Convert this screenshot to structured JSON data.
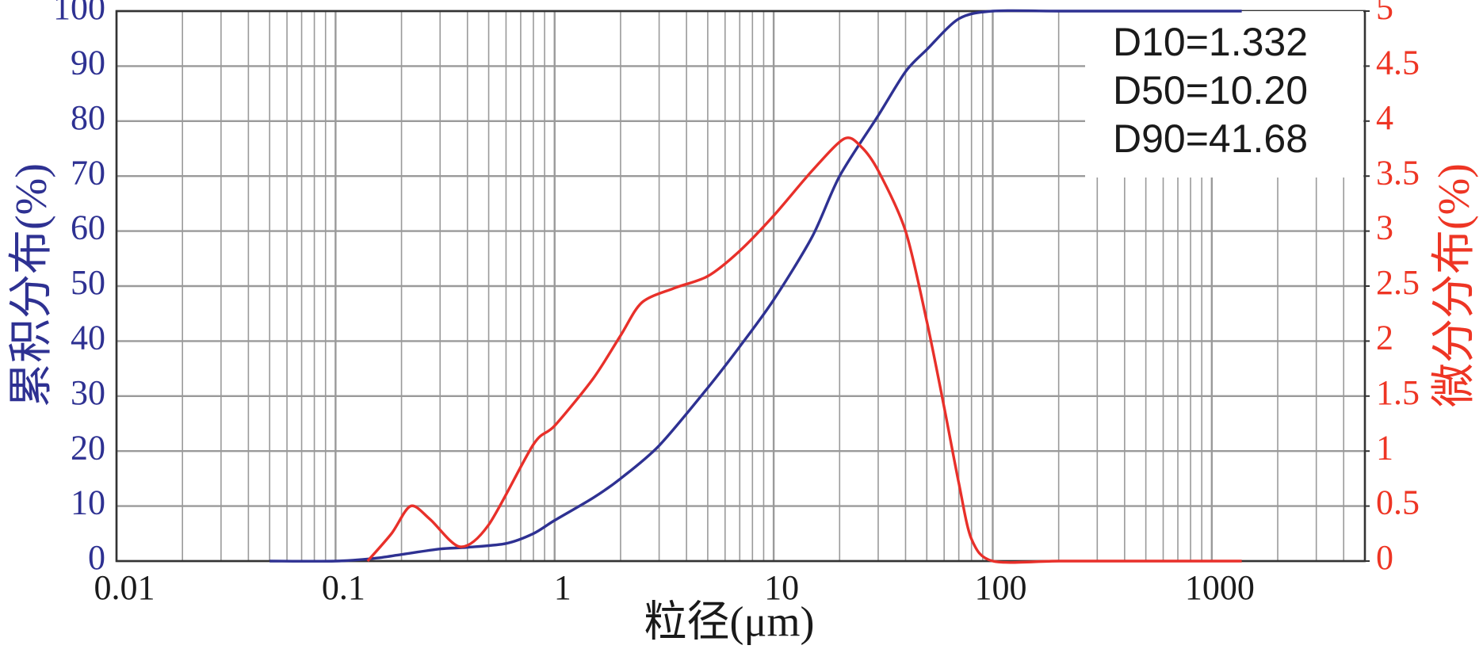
{
  "chart_data": {
    "type": "line",
    "xlabel": "粒径(μm)",
    "ylabel": "累积分布(%)",
    "y2label": "微分分布(%)",
    "log_x": true,
    "grid": true,
    "minor_grid": true,
    "xlim": [
      0.01,
      5000
    ],
    "xticks": [
      0.01,
      0.1,
      1,
      10,
      100,
      1000
    ],
    "ylim": [
      0,
      100
    ],
    "yticks": [
      0,
      10,
      20,
      30,
      40,
      50,
      60,
      70,
      80,
      90,
      100
    ],
    "y2lim": [
      0,
      5
    ],
    "y2ticks": [
      0,
      0.5,
      1,
      1.5,
      2,
      2.5,
      3,
      3.5,
      4,
      4.5,
      5
    ],
    "ytick_color": "#2e3192",
    "y2tick_color": "#ee3524",
    "annotations": [
      "D10=1.332",
      "D50=10.20",
      "D90=41.68"
    ],
    "series": [
      {
        "color": "#2e3192",
        "x": [
          0.05,
          0.1,
          0.15,
          0.2,
          0.3,
          0.4,
          0.6,
          0.8,
          1,
          1.5,
          2,
          3,
          5,
          7,
          10,
          15,
          20,
          30,
          40,
          50,
          70,
          100,
          200,
          500,
          1370
        ],
        "values": [
          0,
          0,
          0.5,
          1.2,
          2.2,
          2.5,
          3.2,
          5,
          7.4,
          11.5,
          15,
          21,
          31.5,
          39,
          47.5,
          59,
          70,
          81,
          89,
          93,
          98.6,
          100,
          100,
          100,
          100
        ]
      },
      {
        "color": "#e8302a",
        "axis": "y2",
        "x": [
          0.14,
          0.18,
          0.22,
          0.27,
          0.37,
          0.5,
          0.8,
          1,
          1.5,
          2,
          2.5,
          3.5,
          5,
          7,
          10,
          15,
          21,
          25,
          30,
          40,
          50,
          60,
          70,
          80,
          100,
          200,
          500,
          1370
        ],
        "values": [
          0,
          0.25,
          0.5,
          0.38,
          0.13,
          0.33,
          1.06,
          1.23,
          1.66,
          2.05,
          2.35,
          2.48,
          2.59,
          2.82,
          3.14,
          3.55,
          3.84,
          3.77,
          3.55,
          3.0,
          2.18,
          1.4,
          0.71,
          0.2,
          0,
          0,
          0,
          0
        ]
      }
    ]
  }
}
